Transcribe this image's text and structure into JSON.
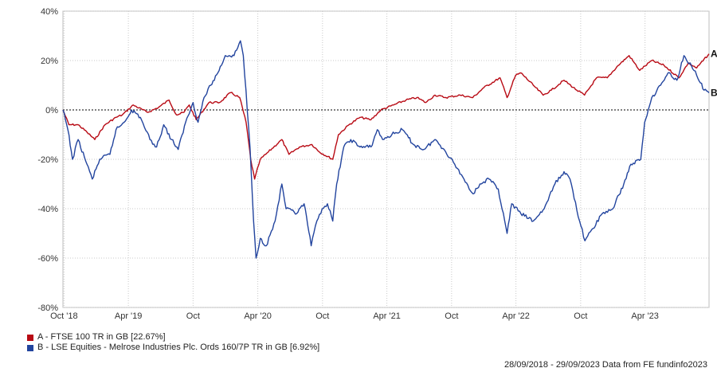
{
  "chart_data": {
    "type": "line",
    "title": "",
    "xlabel": "",
    "ylabel": "",
    "x_range": [
      "2018-09-28",
      "2023-09-29"
    ],
    "ylim": [
      -80,
      40
    ],
    "y_ticks": [
      40,
      20,
      0,
      -20,
      -40,
      -60,
      -80
    ],
    "y_tick_labels": [
      "40%",
      "20%",
      "0%",
      "-20%",
      "-40%",
      "-60%",
      "-80%"
    ],
    "x_ticks": [
      {
        "label": "Oct '18",
        "date": "2018-10-01"
      },
      {
        "label": "Apr '19",
        "date": "2019-04-01"
      },
      {
        "label": "Oct",
        "date": "2019-10-01"
      },
      {
        "label": "Apr '20",
        "date": "2020-04-01"
      },
      {
        "label": "Oct",
        "date": "2020-10-01"
      },
      {
        "label": "Apr '21",
        "date": "2021-04-01"
      },
      {
        "label": "Oct",
        "date": "2021-10-01"
      },
      {
        "label": "Apr '22",
        "date": "2022-04-01"
      },
      {
        "label": "Oct",
        "date": "2022-10-01"
      },
      {
        "label": "Apr '23",
        "date": "2023-04-01"
      }
    ],
    "grid": true,
    "zero_line": true,
    "legend_position": "bottom-left",
    "series": [
      {
        "key": "A",
        "name": "A - FTSE 100 TR in GB [22.67%]",
        "color": "#b80a14",
        "points": [
          [
            "2018-09-28",
            0
          ],
          [
            "2018-10-15",
            -6
          ],
          [
            "2018-11-10",
            -6
          ],
          [
            "2018-12-05",
            -9
          ],
          [
            "2018-12-27",
            -12
          ],
          [
            "2019-01-25",
            -6
          ],
          [
            "2019-02-25",
            -3
          ],
          [
            "2019-03-15",
            -2
          ],
          [
            "2019-04-15",
            2
          ],
          [
            "2019-05-25",
            -1
          ],
          [
            "2019-06-25",
            1
          ],
          [
            "2019-07-25",
            4
          ],
          [
            "2019-08-15",
            -2
          ],
          [
            "2019-09-05",
            -1
          ],
          [
            "2019-09-20",
            2
          ],
          [
            "2019-10-10",
            -4
          ],
          [
            "2019-11-15",
            3
          ],
          [
            "2019-12-15",
            3
          ],
          [
            "2020-01-15",
            7
          ],
          [
            "2020-02-10",
            5
          ],
          [
            "2020-02-28",
            -5
          ],
          [
            "2020-03-12",
            -20
          ],
          [
            "2020-03-23",
            -28
          ],
          [
            "2020-04-08",
            -20
          ],
          [
            "2020-05-01",
            -17
          ],
          [
            "2020-06-08",
            -12
          ],
          [
            "2020-06-28",
            -18
          ],
          [
            "2020-07-28",
            -15
          ],
          [
            "2020-09-01",
            -14
          ],
          [
            "2020-09-22",
            -17
          ],
          [
            "2020-10-30",
            -20
          ],
          [
            "2020-11-15",
            -10
          ],
          [
            "2020-12-15",
            -6
          ],
          [
            "2021-01-15",
            -3
          ],
          [
            "2021-02-15",
            -4
          ],
          [
            "2021-03-15",
            0
          ],
          [
            "2021-04-20",
            2
          ],
          [
            "2021-05-25",
            4
          ],
          [
            "2021-06-25",
            5
          ],
          [
            "2021-07-20",
            3
          ],
          [
            "2021-08-15",
            6
          ],
          [
            "2021-09-15",
            5
          ],
          [
            "2021-10-25",
            6
          ],
          [
            "2021-11-30",
            5
          ],
          [
            "2021-12-31",
            9
          ],
          [
            "2022-02-15",
            13
          ],
          [
            "2022-03-07",
            5
          ],
          [
            "2022-03-31",
            14
          ],
          [
            "2022-04-15",
            15
          ],
          [
            "2022-05-20",
            10
          ],
          [
            "2022-06-17",
            6
          ],
          [
            "2022-07-10",
            8
          ],
          [
            "2022-08-15",
            12
          ],
          [
            "2022-09-20",
            8
          ],
          [
            "2022-10-12",
            6
          ],
          [
            "2022-11-15",
            13
          ],
          [
            "2022-12-15",
            13
          ],
          [
            "2023-01-15",
            18
          ],
          [
            "2023-02-15",
            22
          ],
          [
            "2023-03-17",
            16
          ],
          [
            "2023-04-20",
            20
          ],
          [
            "2023-05-25",
            18
          ],
          [
            "2023-07-06",
            13
          ],
          [
            "2023-08-01",
            19
          ],
          [
            "2023-08-25",
            17
          ],
          [
            "2023-09-29",
            22.67
          ]
        ]
      },
      {
        "key": "B",
        "name": "B - LSE Equities - Melrose Industries Plc. Ords 160/7P TR in GB [6.92%]",
        "color": "#22449e",
        "points": [
          [
            "2018-09-28",
            0
          ],
          [
            "2018-10-12",
            -8
          ],
          [
            "2018-10-25",
            -20
          ],
          [
            "2018-11-10",
            -12
          ],
          [
            "2018-12-05",
            -22
          ],
          [
            "2018-12-20",
            -28
          ],
          [
            "2019-01-10",
            -20
          ],
          [
            "2019-02-08",
            -18
          ],
          [
            "2019-02-25",
            -8
          ],
          [
            "2019-03-20",
            -5
          ],
          [
            "2019-04-10",
            0
          ],
          [
            "2019-05-05",
            -3
          ],
          [
            "2019-06-01",
            -12
          ],
          [
            "2019-06-20",
            -15
          ],
          [
            "2019-07-10",
            -6
          ],
          [
            "2019-08-01",
            -12
          ],
          [
            "2019-08-20",
            -16
          ],
          [
            "2019-09-10",
            -5
          ],
          [
            "2019-10-01",
            3
          ],
          [
            "2019-10-15",
            -5
          ],
          [
            "2019-11-01",
            5
          ],
          [
            "2019-11-20",
            10
          ],
          [
            "2019-12-10",
            15
          ],
          [
            "2019-12-31",
            22
          ],
          [
            "2020-01-25",
            22
          ],
          [
            "2020-02-12",
            28
          ],
          [
            "2020-02-20",
            22
          ],
          [
            "2020-03-10",
            -15
          ],
          [
            "2020-03-20",
            -45
          ],
          [
            "2020-03-27",
            -60
          ],
          [
            "2020-04-08",
            -52
          ],
          [
            "2020-04-25",
            -55
          ],
          [
            "2020-05-20",
            -45
          ],
          [
            "2020-06-08",
            -30
          ],
          [
            "2020-06-20",
            -40
          ],
          [
            "2020-07-20",
            -42
          ],
          [
            "2020-08-10",
            -38
          ],
          [
            "2020-08-30",
            -55
          ],
          [
            "2020-09-15",
            -45
          ],
          [
            "2020-09-30",
            -40
          ],
          [
            "2020-10-15",
            -38
          ],
          [
            "2020-10-30",
            -45
          ],
          [
            "2020-11-10",
            -30
          ],
          [
            "2020-11-30",
            -15
          ],
          [
            "2020-12-20",
            -12
          ],
          [
            "2021-01-15",
            -15
          ],
          [
            "2021-02-15",
            -15
          ],
          [
            "2021-03-05",
            -8
          ],
          [
            "2021-03-20",
            -12
          ],
          [
            "2021-04-15",
            -10
          ],
          [
            "2021-05-15",
            -8
          ],
          [
            "2021-06-15",
            -14
          ],
          [
            "2021-07-15",
            -16
          ],
          [
            "2021-08-15",
            -12
          ],
          [
            "2021-09-10",
            -16
          ],
          [
            "2021-10-10",
            -22
          ],
          [
            "2021-11-05",
            -28
          ],
          [
            "2021-12-01",
            -34
          ],
          [
            "2021-12-20",
            -30
          ],
          [
            "2022-01-15",
            -28
          ],
          [
            "2022-02-10",
            -32
          ],
          [
            "2022-03-07",
            -50
          ],
          [
            "2022-03-20",
            -38
          ],
          [
            "2022-04-15",
            -42
          ],
          [
            "2022-05-20",
            -45
          ],
          [
            "2022-06-20",
            -40
          ],
          [
            "2022-07-20",
            -30
          ],
          [
            "2022-08-15",
            -25
          ],
          [
            "2022-09-01",
            -28
          ],
          [
            "2022-09-28",
            -45
          ],
          [
            "2022-10-13",
            -53
          ],
          [
            "2022-11-05",
            -48
          ],
          [
            "2022-12-01",
            -42
          ],
          [
            "2022-12-31",
            -40
          ],
          [
            "2023-01-31",
            -30
          ],
          [
            "2023-02-20",
            -22
          ],
          [
            "2023-03-20",
            -20
          ],
          [
            "2023-03-31",
            -5
          ],
          [
            "2023-04-20",
            5
          ],
          [
            "2023-05-15",
            10
          ],
          [
            "2023-06-05",
            15
          ],
          [
            "2023-06-30",
            12
          ],
          [
            "2023-07-20",
            22
          ],
          [
            "2023-08-10",
            18
          ],
          [
            "2023-08-25",
            14
          ],
          [
            "2023-09-15",
            8
          ],
          [
            "2023-09-29",
            6.92
          ]
        ]
      }
    ]
  },
  "end_labels": {
    "a": "A",
    "b": "B"
  },
  "legend": {
    "a": {
      "label": "A - FTSE 100 TR in GB [22.67%]",
      "color": "#b80a14"
    },
    "b": {
      "label": "B - LSE Equities - Melrose Industries Plc. Ords 160/7P TR in GB [6.92%]",
      "color": "#22449e"
    }
  },
  "footer": "28/09/2018 - 29/09/2023 Data from FE fundinfo2023"
}
